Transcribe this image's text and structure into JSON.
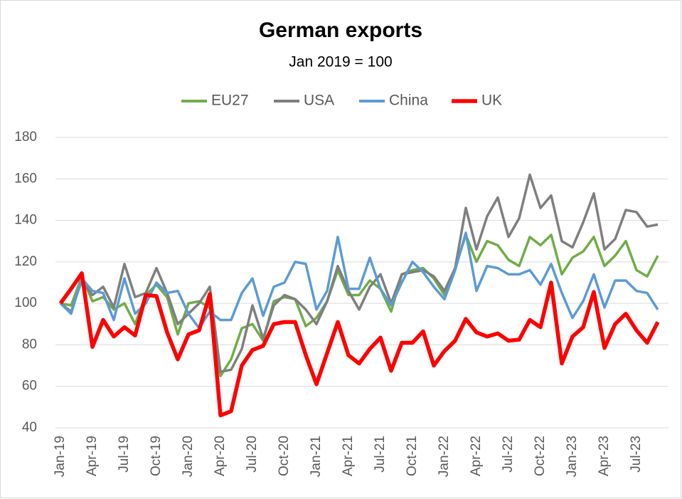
{
  "chart_data": {
    "type": "line",
    "title": "German exports",
    "subtitle": "Jan 2019 = 100",
    "categories": [
      "Jan-19",
      null,
      null,
      "Apr-19",
      null,
      null,
      "Jul-19",
      null,
      null,
      "Oct-19",
      null,
      null,
      "Jan-20",
      null,
      null,
      "Apr-20",
      null,
      null,
      "Jul-20",
      null,
      null,
      "Oct-20",
      null,
      null,
      "Jan-21",
      null,
      null,
      "Apr-21",
      null,
      null,
      "Jul-21",
      null,
      null,
      "Oct-21",
      null,
      null,
      "Jan-22",
      null,
      null,
      "Apr-22",
      null,
      null,
      "Jul-22",
      null,
      null,
      "Oct-22",
      null,
      null,
      "Jan-23",
      null,
      null,
      "Apr-23",
      null,
      null,
      "Jul-23",
      null,
      null
    ],
    "series": [
      {
        "name": "EU27",
        "color": "#70ad47",
        "values": [
          100,
          99,
          113,
          101,
          103,
          97,
          100,
          90,
          104,
          109,
          103,
          85,
          100,
          101,
          98,
          65,
          73,
          88,
          90,
          82,
          101,
          103,
          102,
          89,
          93,
          101,
          116,
          104,
          104,
          111,
          107,
          96,
          114,
          116,
          117,
          112,
          104,
          117,
          133,
          120,
          130,
          128,
          121,
          118,
          132,
          128,
          133,
          114,
          122,
          125,
          132,
          118,
          123,
          130,
          116,
          113,
          123
        ]
      },
      {
        "name": "USA",
        "color": "#7f7f7f",
        "values": [
          100,
          96,
          111,
          104,
          108,
          98,
          119,
          103,
          105,
          117,
          105,
          90,
          95,
          100,
          108,
          67,
          68,
          78,
          99,
          83,
          99,
          104,
          102,
          97,
          90,
          101,
          118,
          106,
          97,
          108,
          114,
          100,
          114,
          115,
          116,
          113,
          106,
          117,
          146,
          126,
          142,
          151,
          132,
          141,
          162,
          146,
          152,
          130,
          127,
          139,
          153,
          126,
          131,
          145,
          144,
          137,
          138
        ]
      },
      {
        "name": "China",
        "color": "#5b9bd5",
        "values": [
          100,
          95,
          112,
          106,
          105,
          92,
          112,
          95,
          100,
          110,
          105,
          106,
          95,
          88,
          96,
          92,
          92,
          105,
          112,
          94,
          108,
          110,
          120,
          119,
          97,
          106,
          132,
          107,
          107,
          122,
          107,
          99,
          110,
          120,
          115,
          108,
          102,
          116,
          134,
          106,
          118,
          117,
          114,
          114,
          116,
          109,
          119,
          105,
          93,
          101,
          114,
          98,
          111,
          111,
          106,
          105,
          97
        ]
      },
      {
        "name": "UK",
        "color": "#ff0000",
        "values": [
          100,
          107,
          114.5,
          79,
          92,
          84,
          88.5,
          84.5,
          104,
          103.5,
          86,
          73,
          85,
          87,
          104.5,
          46,
          48,
          70,
          77.5,
          79.5,
          90,
          91,
          91,
          75,
          61,
          76,
          91,
          75,
          71,
          78,
          83.5,
          67.5,
          81,
          81,
          86.5,
          70,
          77,
          82,
          92.5,
          86,
          84,
          85.5,
          82,
          82.5,
          92,
          88.5,
          110,
          71,
          84,
          88.5,
          105.5,
          78.5,
          90,
          95,
          87,
          81,
          91
        ]
      }
    ],
    "ylim": [
      40,
      180
    ],
    "yticks": [
      40,
      60,
      80,
      100,
      120,
      140,
      160,
      180
    ],
    "grid": true
  }
}
